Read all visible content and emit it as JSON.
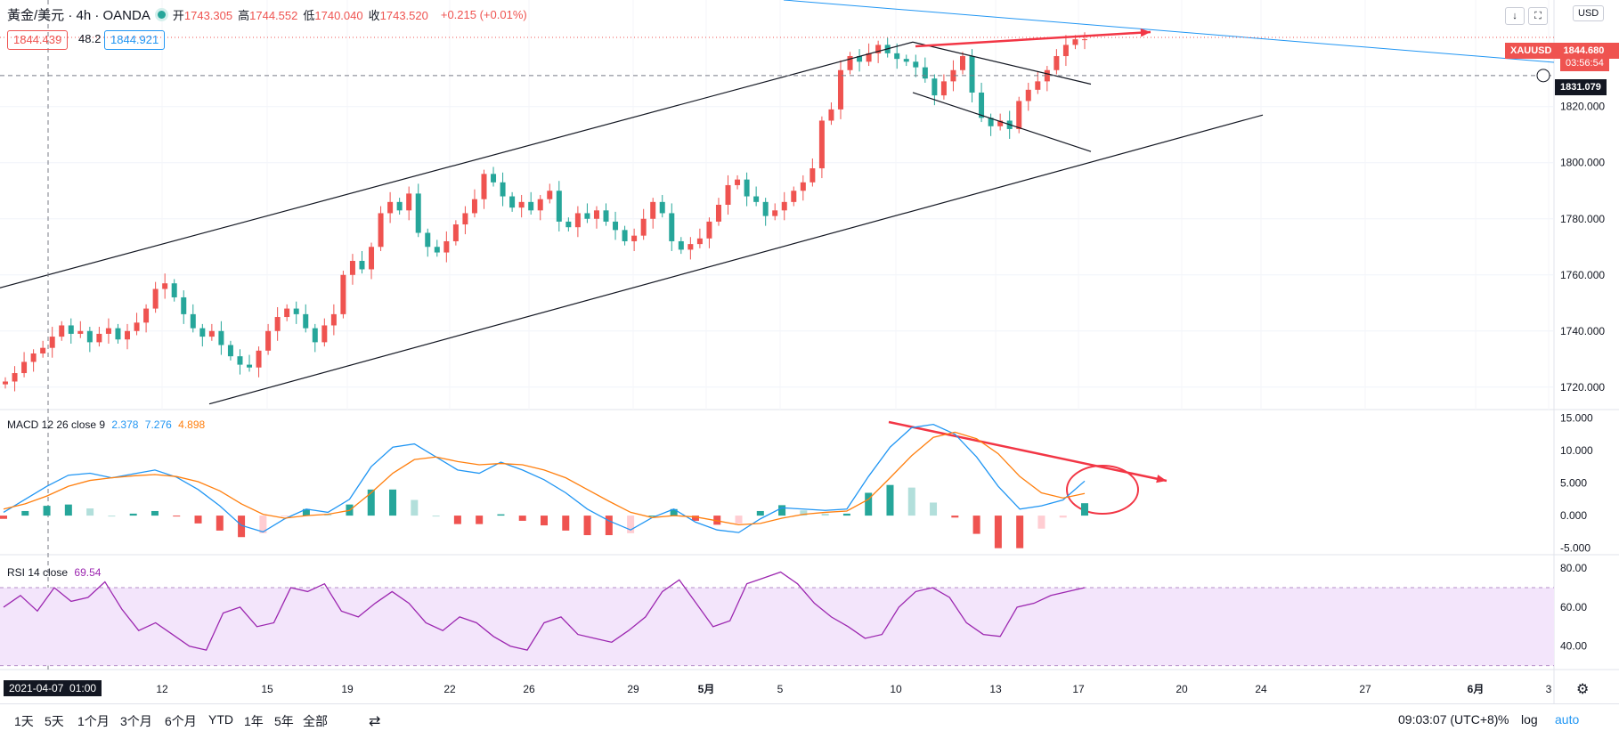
{
  "header": {
    "symbol": "黃金/美元 · 4h · OANDA",
    "ohlc": [
      {
        "k": "开",
        "v": "1743.305"
      },
      {
        "k": "高",
        "v": "1744.552"
      },
      {
        "k": "低",
        "v": "1740.040"
      },
      {
        "k": "收",
        "v": "1743.520"
      }
    ],
    "change": "+0.215 (+0.01%)",
    "bid": "1844.439",
    "spread": "48.2",
    "ask": "1844.921",
    "currency": "USD"
  },
  "price_tags": {
    "symbol": "XAUUSD",
    "last": "1844.680",
    "countdown": "03:56:54",
    "crosshair": "1831.079",
    "crosshair_date": "2021-04-07  01:00"
  },
  "colors": {
    "up": "#ef5350",
    "down": "#26a69a",
    "macd": "#2196f3",
    "signal": "#ff7f0e",
    "rsi": "#9c27b0",
    "rsi_band": "#f3e5fb",
    "annot": "#f23645",
    "trend": "#2196f3"
  },
  "macd_label": {
    "name": "MACD 12 26 close 9",
    "macd": "2.378",
    "signal": "7.276",
    "hist": "4.898"
  },
  "rsi_label": {
    "name": "RSI 14 close",
    "value": "69.54"
  },
  "toolbar": {
    "ranges": [
      "1天",
      "5天",
      "1个月",
      "3个月",
      "6个月",
      "YTD",
      "1年",
      "5年",
      "全部"
    ],
    "time": "09:03:07 (UTC+8)",
    "percent": "%",
    "log": "log",
    "auto": "auto"
  },
  "chart_data": [
    {
      "type": "candlestick",
      "title": "XAUUSD 4h",
      "ylim": [
        1712,
        1858
      ],
      "yticks": [
        "1720.000",
        "1740.000",
        "1760.000",
        "1780.000",
        "1800.000",
        "1820.000"
      ],
      "xticks": [
        "12",
        "15",
        "19",
        "22",
        "26",
        "29",
        "5月",
        "5",
        "10",
        "13",
        "17",
        "20",
        "24",
        "27",
        "6月",
        "3"
      ],
      "closes": [
        1722,
        1725,
        1729,
        1732,
        1734,
        1738,
        1742,
        1739,
        1740,
        1736,
        1739,
        1741,
        1737,
        1740,
        1743,
        1748,
        1755,
        1757,
        1752,
        1746,
        1741,
        1738,
        1740,
        1735,
        1731,
        1728,
        1727,
        1733,
        1740,
        1745,
        1748,
        1746,
        1741,
        1736,
        1742,
        1746,
        1760,
        1765,
        1762,
        1770,
        1782,
        1786,
        1783,
        1789,
        1775,
        1770,
        1768,
        1772,
        1778,
        1782,
        1787,
        1796,
        1793,
        1788,
        1784,
        1786,
        1783,
        1787,
        1790,
        1779,
        1777,
        1782,
        1780,
        1783,
        1779,
        1776,
        1772,
        1774,
        1780,
        1786,
        1782,
        1772,
        1769,
        1771,
        1773,
        1779,
        1785,
        1792,
        1794,
        1788,
        1786,
        1781,
        1783,
        1786,
        1790,
        1793,
        1798,
        1815,
        1819,
        1833,
        1838,
        1836,
        1839,
        1842,
        1839,
        1837,
        1836,
        1834,
        1830,
        1824,
        1829,
        1833,
        1838,
        1825,
        1816,
        1813,
        1815,
        1812,
        1822,
        1826,
        1829,
        1833,
        1838,
        1842,
        1844,
        1844
      ],
      "trend_lines": [
        {
          "from": [
            "4/1",
            1752
          ],
          "to": [
            "5/10",
            1843
          ],
          "style": "channel-upper"
        },
        {
          "from": [
            "4/14",
            1714
          ],
          "to": [
            "5/24",
            1817
          ],
          "style": "channel-lower"
        },
        {
          "from": [
            "5/10",
            1843
          ],
          "to": [
            "5/17",
            1828
          ],
          "style": "flag-upper"
        },
        {
          "from": [
            "5/10",
            1825
          ],
          "to": [
            "5/17",
            1804
          ],
          "style": "flag-lower"
        }
      ]
    },
    {
      "type": "line",
      "title": "MACD 12 26 close 9",
      "ylim": [
        -6,
        16
      ],
      "yticks": [
        "15.000",
        "10.000",
        "5.000",
        "0.000",
        "-5.000"
      ],
      "series": [
        {
          "name": "MACD",
          "values": [
            0.5,
            2.5,
            4.5,
            6.2,
            6.5,
            5.8,
            6.4,
            7.0,
            5.9,
            4.0,
            1.5,
            -1.5,
            -2.5,
            -0.5,
            1.0,
            0.5,
            2.5,
            7.5,
            10.5,
            11.0,
            9.0,
            7.0,
            6.5,
            8.2,
            7.0,
            5.5,
            3.5,
            1.0,
            -0.8,
            -2.2,
            -0.3,
            1.0,
            -1.0,
            -2.2,
            -2.6,
            -0.5,
            1.2,
            1.0,
            0.8,
            1.0,
            6.0,
            10.5,
            13.5,
            14.0,
            12.5,
            9.0,
            4.5,
            1.0,
            1.5,
            2.4,
            5.3
          ]
        },
        {
          "name": "Signal",
          "values": [
            1.0,
            1.8,
            3.0,
            4.5,
            5.4,
            5.8,
            6.1,
            6.3,
            6.0,
            5.2,
            3.8,
            1.8,
            0.2,
            -0.4,
            0.0,
            0.2,
            0.8,
            3.5,
            6.5,
            8.6,
            9.0,
            8.3,
            7.8,
            8.0,
            7.8,
            7.0,
            5.8,
            4.0,
            2.2,
            0.5,
            -0.3,
            0.0,
            -0.2,
            -0.8,
            -1.4,
            -1.2,
            -0.4,
            0.2,
            0.5,
            0.7,
            2.5,
            5.8,
            9.2,
            12.0,
            12.8,
            11.8,
            9.5,
            6.0,
            3.5,
            2.7,
            3.4
          ]
        },
        {
          "name": "Histogram",
          "values": [
            -0.5,
            0.7,
            1.5,
            1.7,
            1.1,
            0.0,
            0.3,
            0.7,
            -0.1,
            -1.2,
            -2.3,
            -3.3,
            -2.7,
            -0.1,
            1.0,
            0.3,
            1.7,
            4.0,
            4.0,
            2.4,
            0.0,
            -1.3,
            -1.3,
            0.2,
            -0.8,
            -1.5,
            -2.3,
            -3.0,
            -3.0,
            -2.7,
            0.0,
            1.0,
            -0.8,
            -1.4,
            -1.2,
            0.7,
            1.6,
            0.8,
            0.3,
            0.3,
            3.5,
            4.7,
            4.3,
            2.0,
            -0.3,
            -2.8,
            -5.0,
            -5.0,
            -2.0,
            -0.3,
            1.9
          ]
        }
      ]
    },
    {
      "type": "line",
      "title": "RSI 14 close",
      "ylim": [
        28,
        86
      ],
      "yticks": [
        "80.00",
        "60.00",
        "40.00"
      ],
      "bands": [
        30,
        70
      ],
      "series": [
        {
          "name": "RSI",
          "values": [
            60,
            66,
            58,
            70,
            63,
            65,
            73,
            59,
            48,
            52,
            46,
            40,
            38,
            57,
            60,
            50,
            52,
            70,
            68,
            72,
            58,
            55,
            62,
            68,
            62,
            52,
            48,
            55,
            52,
            45,
            40,
            38,
            52,
            55,
            46,
            44,
            42,
            48,
            55,
            68,
            74,
            62,
            50,
            53,
            72,
            75,
            78,
            72,
            62,
            55,
            50,
            44,
            46,
            60,
            68,
            70,
            65,
            52,
            46,
            45,
            60,
            62,
            66,
            68,
            70
          ]
        }
      ]
    }
  ]
}
